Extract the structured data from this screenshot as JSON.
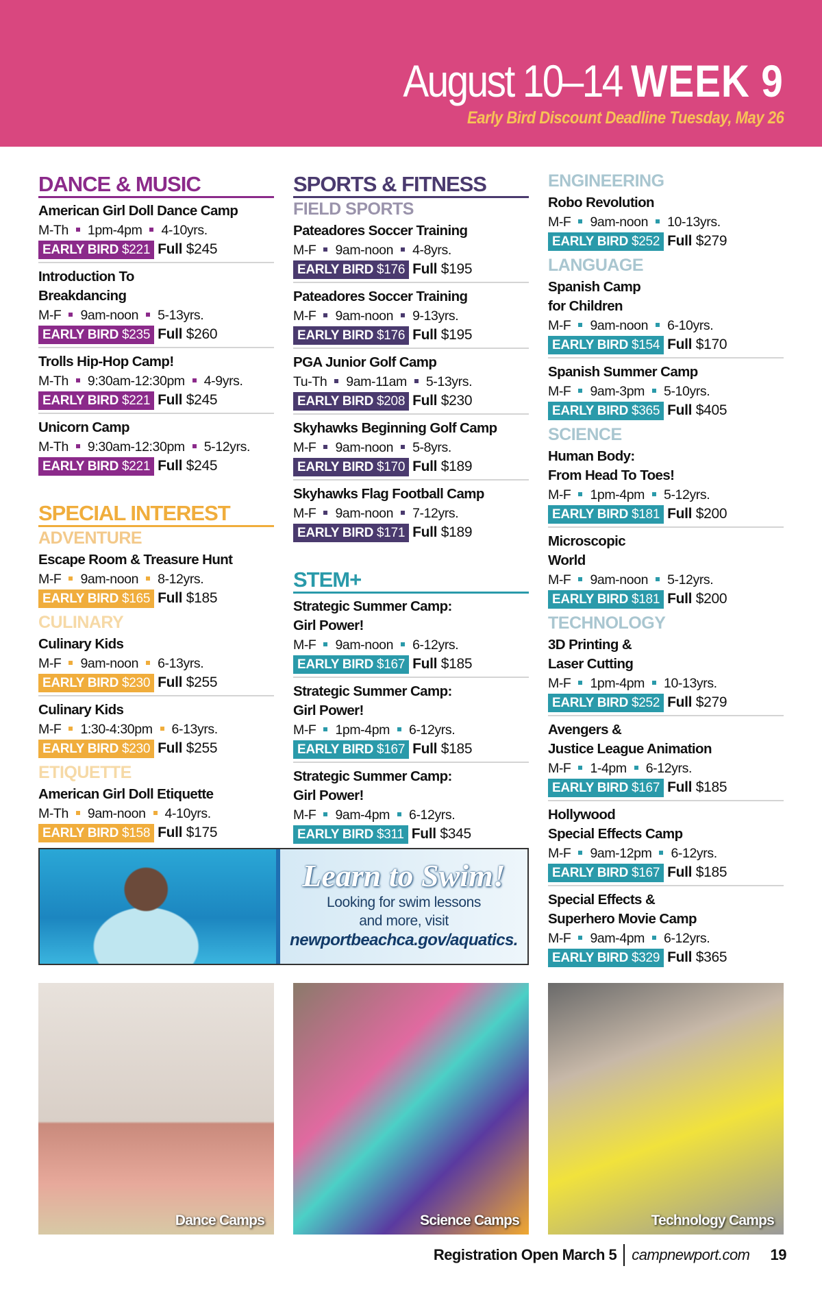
{
  "header": {
    "dates": "August 10–14",
    "week": "WEEK 9",
    "deadline": "Early Bird Discount Deadline Tuesday, May 26"
  },
  "labels": {
    "early_bird": "EARLY BIRD",
    "full": "Full"
  },
  "colors": {
    "header_bg": "#d9477f",
    "deadline": "#f7c356",
    "dance": "#8b2a8a",
    "sports": "#4a3a6e",
    "sports_sub": "#9a93ab",
    "special": "#f0ad3c",
    "special_sub": "#f6d9a6",
    "stem": "#2a9aaa",
    "stem_sub": "#a9c6d0"
  },
  "columns": [
    {
      "blocks": [
        {
          "type": "major",
          "text": "DANCE & MUSIC",
          "color": "#8b2a8a"
        },
        {
          "type": "items",
          "color": "#8b2a8a",
          "items": [
            {
              "name": [
                "American Girl Doll Dance Camp"
              ],
              "days": "M-Th",
              "time": "1pm-4pm",
              "ages": "4-10yrs.",
              "early": "$221",
              "full": "$245"
            },
            {
              "name": [
                "Introduction To",
                "Breakdancing"
              ],
              "days": "M-F",
              "time": "9am-noon",
              "ages": "5-13yrs.",
              "early": "$235",
              "full": "$260"
            },
            {
              "name": [
                "Trolls Hip-Hop Camp!"
              ],
              "days": "M-Th",
              "time": "9:30am-12:30pm",
              "ages": "4-9yrs.",
              "early": "$221",
              "full": "$245"
            },
            {
              "name": [
                "Unicorn Camp"
              ],
              "days": "M-Th",
              "time": "9:30am-12:30pm",
              "ages": "5-12yrs.",
              "early": "$221",
              "full": "$245"
            }
          ]
        },
        {
          "type": "major",
          "text": "SPECIAL INTEREST",
          "color": "#f0ad3c",
          "gap": true
        },
        {
          "type": "sub",
          "text": "ADVENTURE",
          "color": "#f3c98a"
        },
        {
          "type": "items",
          "color": "#f0ad3c",
          "items": [
            {
              "name": [
                "Escape Room & Treasure Hunt"
              ],
              "days": "M-F",
              "time": "9am-noon",
              "ages": "8-12yrs.",
              "early": "$165",
              "full": "$185"
            }
          ]
        },
        {
          "type": "sub",
          "text": "CULINARY",
          "color": "#f6d9a6"
        },
        {
          "type": "items",
          "color": "#f0ad3c",
          "items": [
            {
              "name": [
                "Culinary Kids"
              ],
              "days": "M-F",
              "time": "9am-noon",
              "ages": "6-13yrs.",
              "early": "$230",
              "full": "$255"
            },
            {
              "name": [
                "Culinary Kids"
              ],
              "days": "M-F",
              "time": "1:30-4:30pm",
              "ages": "6-13yrs.",
              "early": "$230",
              "full": "$255"
            }
          ]
        },
        {
          "type": "sub",
          "text": "ETIQUETTE",
          "color": "#f6d9a6"
        },
        {
          "type": "items",
          "color": "#f0ad3c",
          "items": [
            {
              "name": [
                "American Girl Doll Etiquette"
              ],
              "days": "M-Th",
              "time": "9am-noon",
              "ages": "4-10yrs.",
              "early": "$158",
              "full": "$175"
            }
          ]
        }
      ]
    },
    {
      "blocks": [
        {
          "type": "major",
          "text": "SPORTS & FITNESS",
          "color": "#4a3a6e"
        },
        {
          "type": "sub",
          "text": "FIELD SPORTS",
          "color": "#9a93ab"
        },
        {
          "type": "items",
          "color": "#4a3a6e",
          "items": [
            {
              "name": [
                "Pateadores Soccer Training"
              ],
              "days": "M-F",
              "time": "9am-noon",
              "ages": "4-8yrs.",
              "early": "$176",
              "full": "$195"
            },
            {
              "name": [
                "Pateadores Soccer Training"
              ],
              "days": "M-F",
              "time": "9am-noon",
              "ages": "9-13yrs.",
              "early": "$176",
              "full": "$195"
            },
            {
              "name": [
                "PGA Junior Golf Camp"
              ],
              "days": "Tu-Th",
              "time": "9am-11am",
              "ages": "5-13yrs.",
              "early": "$208",
              "full": "$230"
            },
            {
              "name": [
                "Skyhawks Beginning Golf Camp"
              ],
              "days": "M-F",
              "time": "9am-noon",
              "ages": "5-8yrs.",
              "early": "$170",
              "full": "$189"
            },
            {
              "name": [
                "Skyhawks Flag Football Camp"
              ],
              "days": "M-F",
              "time": "9am-noon",
              "ages": "7-12yrs.",
              "early": "$171",
              "full": "$189"
            }
          ]
        },
        {
          "type": "major",
          "text": "STEM+",
          "color": "#2a9aaa",
          "gap": true
        },
        {
          "type": "items",
          "color": "#2a9aaa",
          "items": [
            {
              "name": [
                "Strategic Summer Camp:",
                "Girl Power!"
              ],
              "days": "M-F",
              "time": "9am-noon",
              "ages": "6-12yrs.",
              "early": "$167",
              "full": "$185"
            },
            {
              "name": [
                "Strategic Summer Camp:",
                "Girl Power!"
              ],
              "days": "M-F",
              "time": "1pm-4pm",
              "ages": "6-12yrs.",
              "early": "$167",
              "full": "$185"
            },
            {
              "name": [
                "Strategic Summer Camp:",
                "Girl Power!"
              ],
              "days": "M-F",
              "time": "9am-4pm",
              "ages": "6-12yrs.",
              "early": "$311",
              "full": "$345"
            }
          ]
        }
      ]
    },
    {
      "blocks": [
        {
          "type": "sub",
          "text": "ENGINEERING",
          "color": "#a9c6d0"
        },
        {
          "type": "items",
          "color": "#2a9aaa",
          "items": [
            {
              "name": [
                "Robo Revolution"
              ],
              "days": "M-F",
              "time": "9am-noon",
              "ages": "10-13yrs.",
              "early": "$252",
              "full": "$279"
            }
          ]
        },
        {
          "type": "sub",
          "text": "LANGUAGE",
          "color": "#a9c6d0"
        },
        {
          "type": "items",
          "color": "#2a9aaa",
          "items": [
            {
              "name": [
                "Spanish Camp",
                "for Children"
              ],
              "days": "M-F",
              "time": "9am-noon",
              "ages": "6-10yrs.",
              "early": "$154",
              "full": "$170"
            },
            {
              "name": [
                "Spanish Summer Camp"
              ],
              "days": "M-F",
              "time": "9am-3pm",
              "ages": "5-10yrs.",
              "early": "$365",
              "full": "$405"
            }
          ]
        },
        {
          "type": "sub",
          "text": "SCIENCE",
          "color": "#a9c6d0"
        },
        {
          "type": "items",
          "color": "#2a9aaa",
          "items": [
            {
              "name": [
                "Human Body:",
                "From Head To Toes!"
              ],
              "days": "M-F",
              "time": "1pm-4pm",
              "ages": "5-12yrs.",
              "early": "$181",
              "full": "$200"
            },
            {
              "name": [
                "Microscopic",
                "World"
              ],
              "days": "M-F",
              "time": "9am-noon",
              "ages": "5-12yrs.",
              "early": "$181",
              "full": "$200"
            }
          ]
        },
        {
          "type": "sub",
          "text": "TECHNOLOGY",
          "color": "#a9c6d0"
        },
        {
          "type": "items",
          "color": "#2a9aaa",
          "items": [
            {
              "name": [
                "3D Printing &",
                "Laser Cutting"
              ],
              "days": "M-F",
              "time": "1pm-4pm",
              "ages": "10-13yrs.",
              "early": "$252",
              "full": "$279"
            },
            {
              "name": [
                "Avengers &",
                "Justice League Animation"
              ],
              "days": "M-F",
              "time": "1-4pm",
              "ages": "6-12yrs.",
              "early": "$167",
              "full": "$185"
            },
            {
              "name": [
                "Hollywood",
                "Special Effects Camp"
              ],
              "days": "M-F",
              "time": "9am-12pm",
              "ages": "6-12yrs.",
              "early": "$167",
              "full": "$185"
            },
            {
              "name": [
                "Special Effects &",
                "Superhero Movie Camp"
              ],
              "days": "M-F",
              "time": "9am-4pm",
              "ages": "6-12yrs.",
              "early": "$329",
              "full": "$365"
            }
          ]
        }
      ]
    }
  ],
  "banner": {
    "headline": "Learn to Swim!",
    "line1": "Looking for swim lessons",
    "line2": "and more, visit",
    "url": "newportbeachca.gov/aquatics."
  },
  "photos": [
    {
      "caption": "Dance Camps"
    },
    {
      "caption": "Science Camps"
    },
    {
      "caption": "Technology Camps"
    }
  ],
  "footer": {
    "registration": "Registration Open March 5",
    "url": "campnewport.com",
    "page": "19"
  }
}
